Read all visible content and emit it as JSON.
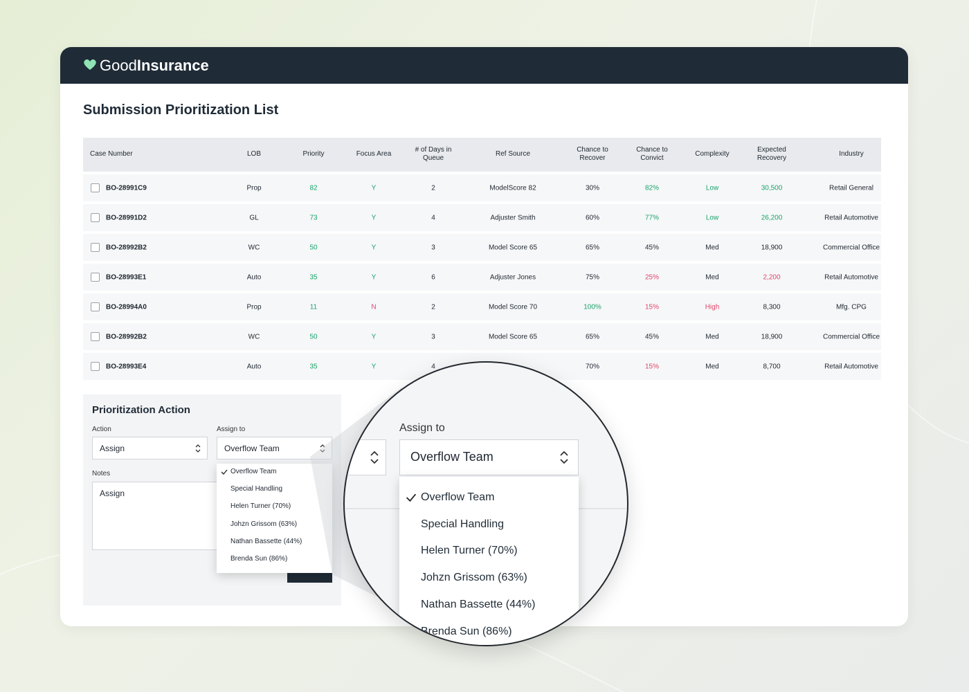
{
  "header": {
    "brand_light": "Good",
    "brand_bold": "Insurance"
  },
  "page_title": "Submission Prioritization List",
  "table": {
    "columns": [
      "Case Number",
      "LOB",
      "Priority",
      "Focus Area",
      "# of Days in Queue",
      "Ref Source",
      "Chance to Recover",
      "Chance to Convict",
      "Complexity",
      "Expected Recovery",
      "Industry"
    ],
    "rows": [
      [
        "BO-28991C9",
        "Prop",
        {
          "text": "82",
          "color": "#1aa36b"
        },
        {
          "text": "Y",
          "color": "#1aa36b"
        },
        "2",
        "ModelScore 82",
        "30%",
        {
          "text": "82%",
          "color": "#1aa36b"
        },
        {
          "text": "Low",
          "color": "#1aa36b"
        },
        {
          "text": "30,500",
          "color": "#1aa36b"
        },
        "Retail General"
      ],
      [
        "BO-28991D2",
        "GL",
        {
          "text": "73",
          "color": "#1aa36b"
        },
        {
          "text": "Y",
          "color": "#1aa36b"
        },
        "4",
        "Adjuster Smith",
        "60%",
        {
          "text": "77%",
          "color": "#1aa36b"
        },
        {
          "text": "Low",
          "color": "#1aa36b"
        },
        {
          "text": "26,200",
          "color": "#1aa36b"
        },
        "Retail Automotive"
      ],
      [
        "BO-28992B2",
        "WC",
        {
          "text": "50",
          "color": "#1aa36b"
        },
        {
          "text": "Y",
          "color": "#1aa36b"
        },
        "3",
        "Model Score 65",
        "65%",
        "45%",
        "Med",
        "18,900",
        "Commercial Office"
      ],
      [
        "BO-28993E1",
        "Auto",
        {
          "text": "35",
          "color": "#1aa36b"
        },
        {
          "text": "Y",
          "color": "#1aa36b"
        },
        "6",
        "Adjuster Jones",
        "75%",
        {
          "text": "25%",
          "color": "#e0456b"
        },
        "Med",
        {
          "text": "2,200",
          "color": "#e0456b"
        },
        "Retail Automotive"
      ],
      [
        "BO-28994A0",
        "Prop",
        {
          "text": "11",
          "color": "#1aa36b"
        },
        {
          "text": "N",
          "color": "#e0456b"
        },
        "2",
        "Model Score 70",
        {
          "text": "100%",
          "color": "#1aa36b"
        },
        {
          "text": "15%",
          "color": "#e0456b"
        },
        {
          "text": "High",
          "color": "#e0456b"
        },
        "8,300",
        "Mfg. CPG"
      ],
      [
        "BO-28992B2",
        "WC",
        {
          "text": "50",
          "color": "#1aa36b"
        },
        {
          "text": "Y",
          "color": "#1aa36b"
        },
        "3",
        "Model Score 65",
        "65%",
        "45%",
        "Med",
        "18,900",
        "Commercial Office"
      ],
      [
        "BO-28993E4",
        "Auto",
        {
          "text": "35",
          "color": "#1aa36b"
        },
        {
          "text": "Y",
          "color": "#1aa36b"
        },
        "4",
        null,
        "70%",
        {
          "text": "15%",
          "color": "#e0456b"
        },
        "Med",
        "8,700",
        "Retail Automotive"
      ]
    ]
  },
  "action_panel": {
    "title": "Prioritization Action",
    "action_label": "Action",
    "action_value": "Assign",
    "assign_label": "Assign to",
    "assign_value": "Overflow Team",
    "notes_label": "Notes",
    "notes_value": "Assign",
    "options": [
      "Overflow Team",
      "Special Handling",
      "Helen Turner (70%)",
      "Johzn Grissom (63%)",
      "Nathan Bassette (44%)",
      "Brenda Sun (86%)"
    ],
    "selected_option": 0
  }
}
